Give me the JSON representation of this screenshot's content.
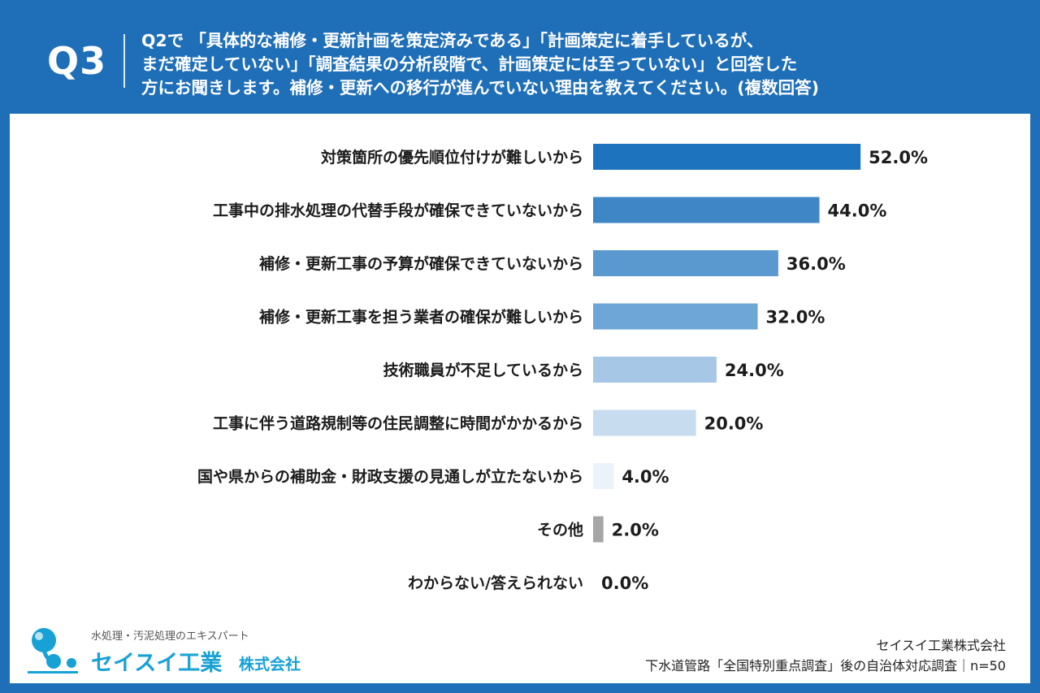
{
  "header": {
    "q_label": "Q3",
    "question_lines": [
      "Q2で 「具体的な補修・更新計画を策定済みである」「計画策定に着手しているが、",
      "まだ確定していない」「調査結果の分析段階で、計画策定には至っていない」と回答した",
      "方にお聞きします。補修・更新への移行が進んでいない理由を教えてください。(複数回答)"
    ]
  },
  "chart_data": {
    "type": "bar",
    "orientation": "horizontal",
    "categories": [
      "対策箇所の優先順位付けが難しいから",
      "工事中の排水処理の代替手段が確保できていないから",
      "補修・更新工事の予算が確保できていないから",
      "補修・更新工事を担う業者の確保が難しいから",
      "技術職員が不足しているから",
      "工事に伴う道路規制等の住民調整に時間がかかるから",
      "国や県からの補助金・財政支援の見通しが立たないから",
      "その他",
      "わからない/答えられない"
    ],
    "values": [
      52.0,
      44.0,
      36.0,
      32.0,
      24.0,
      20.0,
      4.0,
      2.0,
      0.0
    ],
    "value_labels": [
      "52.0%",
      "44.0%",
      "36.0%",
      "32.0%",
      "24.0%",
      "20.0%",
      "4.0%",
      "2.0%",
      "0.0%"
    ],
    "colors": [
      "#1e73be",
      "#3f86c6",
      "#5a99d0",
      "#6ea6d7",
      "#a6c8e6",
      "#c7dcef",
      "#ebf2f9",
      "#a6a6a6",
      "#ffffff"
    ],
    "xlim": [
      0,
      100
    ],
    "grid": false,
    "legend": "none"
  },
  "logo": {
    "tagline": "水処理・汚泥処理のエキスパート",
    "name": "セイスイ工業",
    "suffix": "株式会社"
  },
  "source": {
    "company": "セイスイ工業株式会社",
    "survey": "下水道管路「全国特別重点調査」後の自治体対応調査｜n=50"
  }
}
